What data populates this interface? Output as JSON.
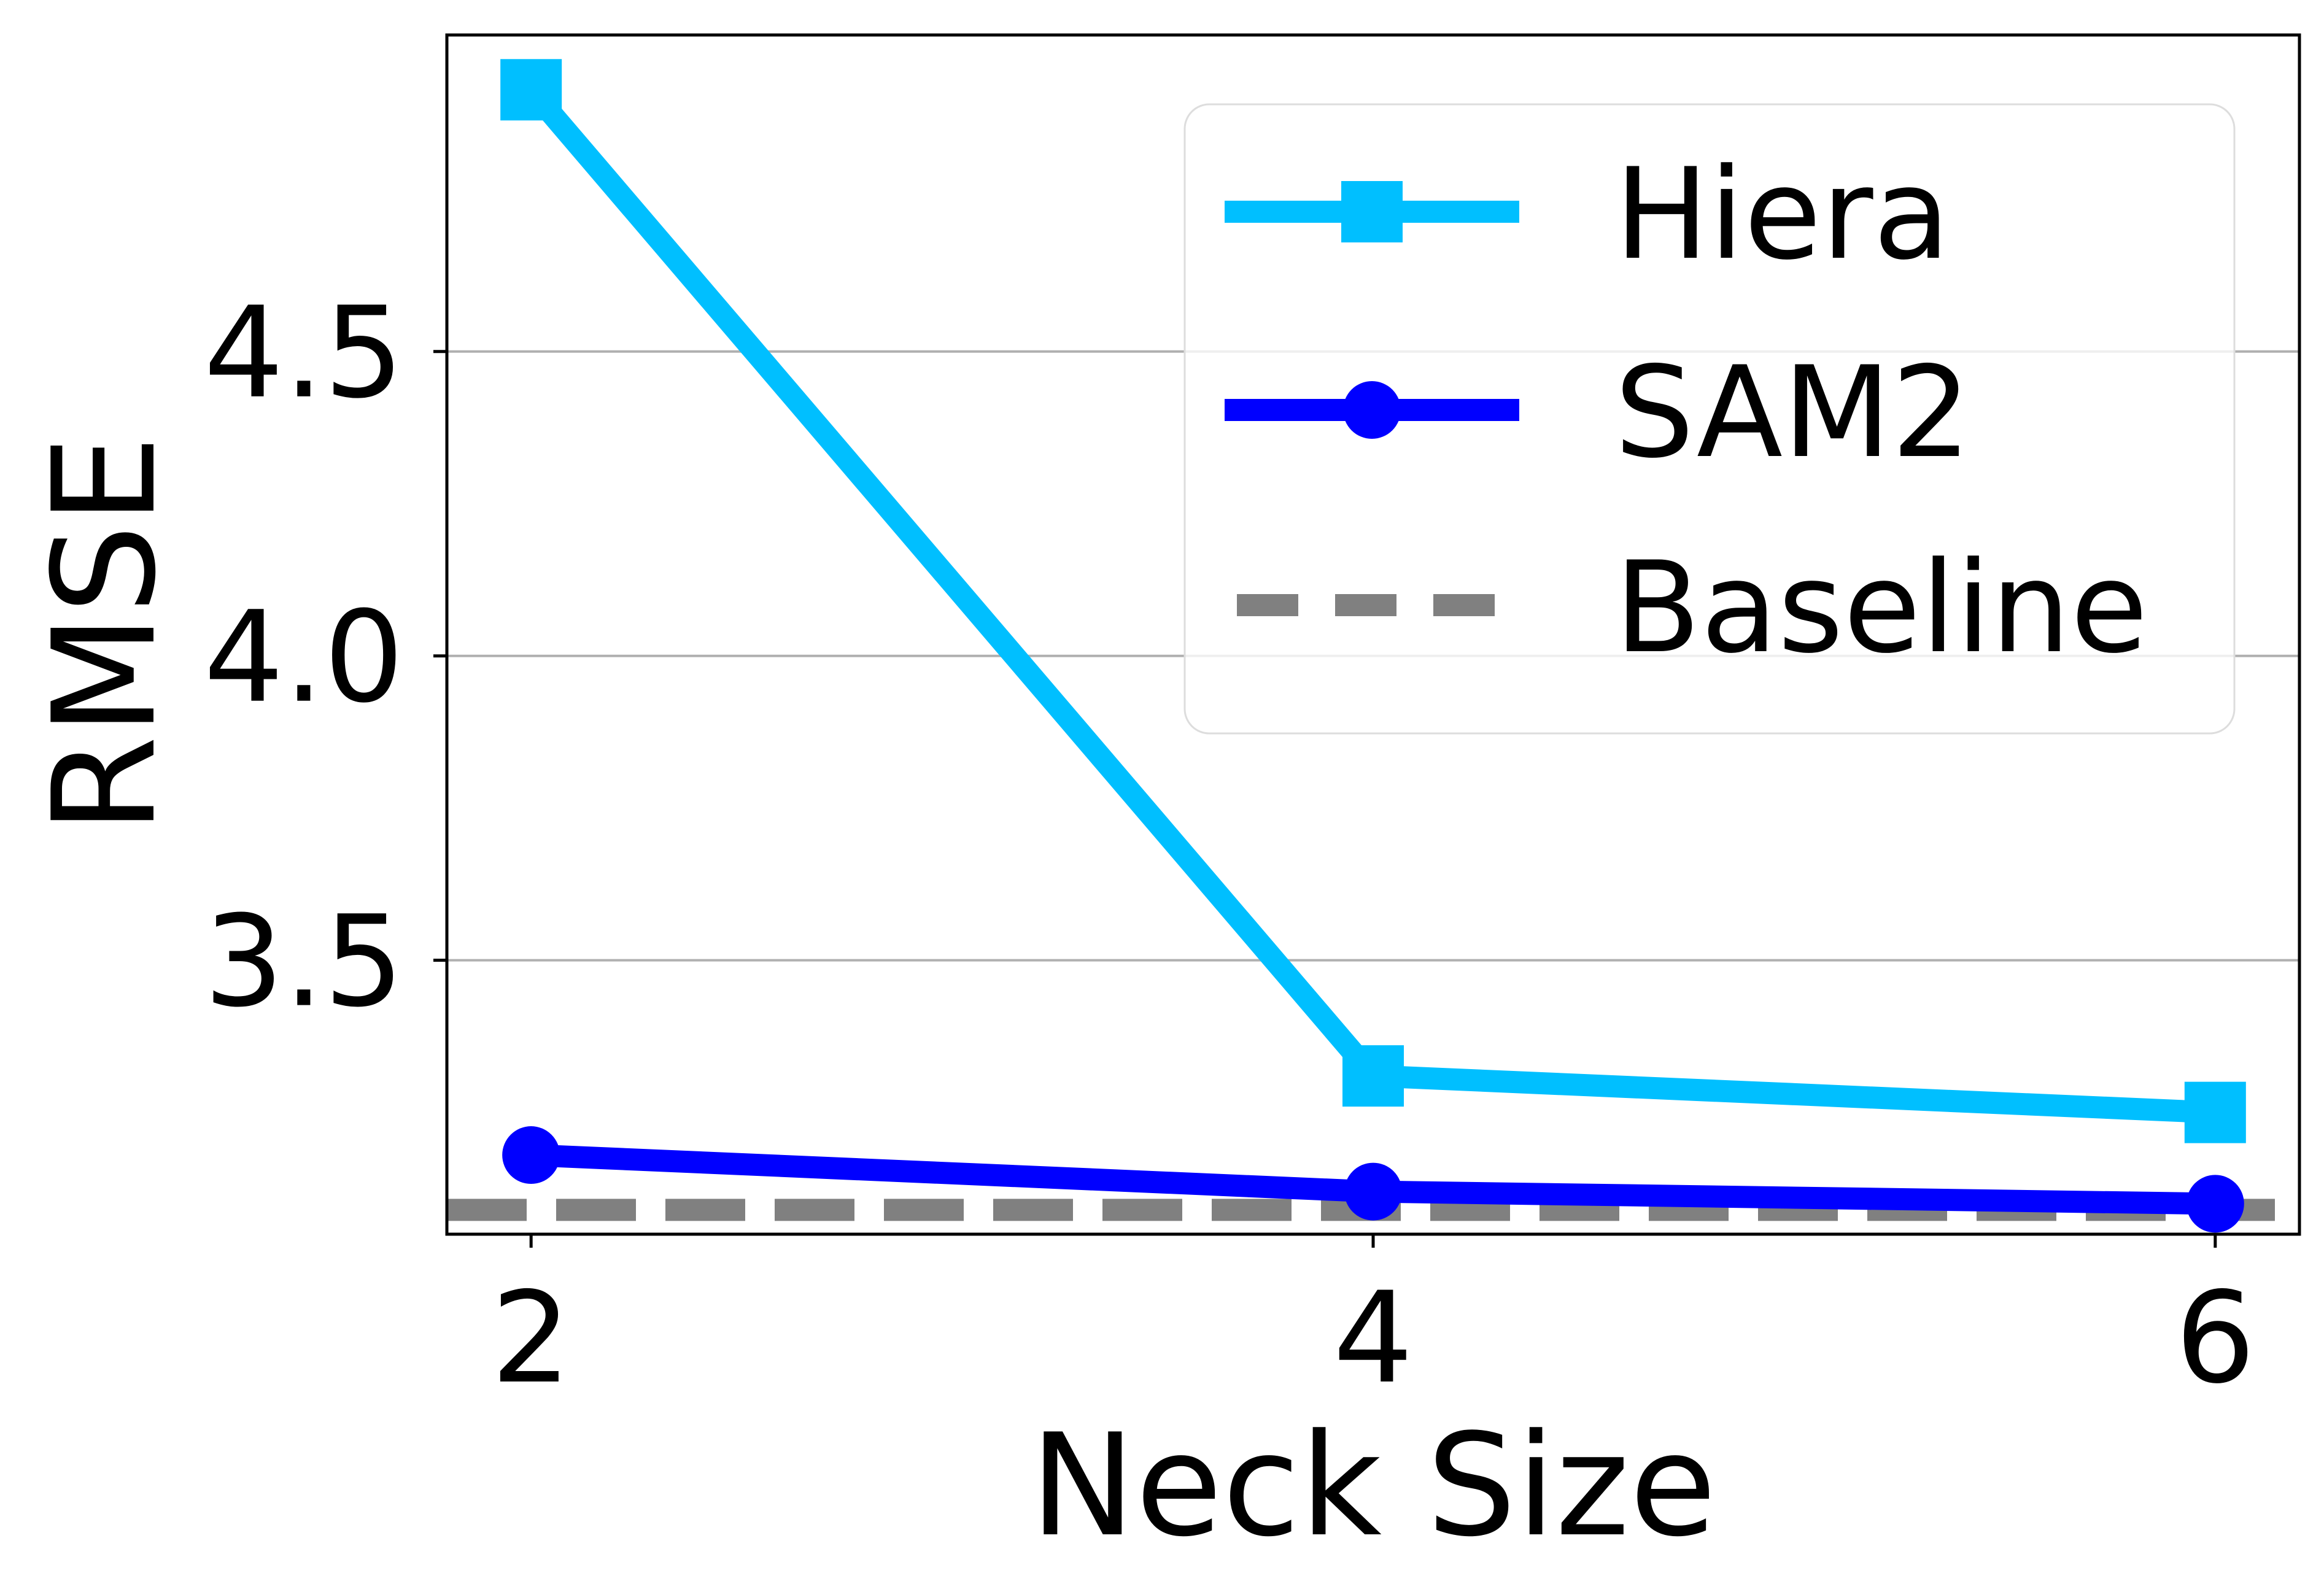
{
  "chart_data": {
    "type": "line",
    "title": "",
    "xlabel": "Neck Size",
    "ylabel": "RMSE",
    "x": [
      2,
      4,
      6
    ],
    "x_ticks": [
      "2",
      "4",
      "6"
    ],
    "xlim": [
      1.8,
      6.2
    ],
    "y_ticks": [
      "3.5",
      "4.0",
      "4.5"
    ],
    "y_tick_values": [
      3.5,
      4.0,
      4.5
    ],
    "ylim": [
      3.05,
      5.02
    ],
    "grid": "horizontal",
    "legend_position": "upper right",
    "series": [
      {
        "name": "Hiera",
        "values": [
          4.93,
          3.31,
          3.25
        ],
        "color": "#00BFFF",
        "marker": "square",
        "linestyle": "solid"
      },
      {
        "name": "SAM2",
        "values": [
          3.18,
          3.12,
          3.1
        ],
        "color": "#0000FF",
        "marker": "circle",
        "linestyle": "solid"
      }
    ],
    "baseline": {
      "name": "Baseline",
      "value": 3.09,
      "color": "#808080",
      "linestyle": "dashed"
    }
  }
}
